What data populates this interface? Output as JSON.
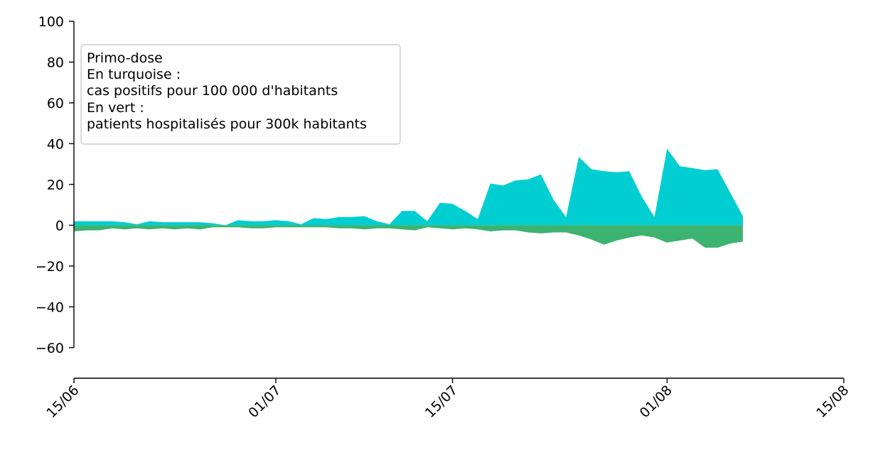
{
  "chart_data": {
    "type": "area",
    "title": "",
    "xlabel": "",
    "ylabel": "",
    "ylim": [
      -75,
      100
    ],
    "y_ticks": [
      100,
      80,
      60,
      40,
      20,
      0,
      -20,
      -40,
      -60
    ],
    "y_tick_labels": [
      "100",
      "80",
      "60",
      "40",
      "20",
      "0",
      "−20",
      "−40",
      "−60"
    ],
    "xlim": [
      "2021-06-15",
      "2021-08-15"
    ],
    "x_ticks": [
      "2021-06-15",
      "2021-07-01",
      "2021-07-15",
      "2021-08-01",
      "2021-08-15"
    ],
    "x_tick_labels": [
      "15/06",
      "01/07",
      "15/07",
      "01/08",
      "15/08"
    ],
    "grid": false,
    "legend_position": "top-left",
    "legend_lines": [
      "Primo-dose",
      "En turquoise :",
      "cas positifs pour 100 000 d'habitants",
      "En vert :",
      "patients hospitalisés pour 300k habitants"
    ],
    "colors": {
      "cases": "#00ced1",
      "hospital": "#3cb371"
    },
    "x": [
      "2021-06-15",
      "2021-06-16",
      "2021-06-17",
      "2021-06-18",
      "2021-06-19",
      "2021-06-20",
      "2021-06-21",
      "2021-06-22",
      "2021-06-23",
      "2021-06-24",
      "2021-06-25",
      "2021-06-26",
      "2021-06-27",
      "2021-06-28",
      "2021-06-29",
      "2021-06-30",
      "2021-07-01",
      "2021-07-02",
      "2021-07-03",
      "2021-07-04",
      "2021-07-05",
      "2021-07-06",
      "2021-07-07",
      "2021-07-08",
      "2021-07-09",
      "2021-07-10",
      "2021-07-11",
      "2021-07-12",
      "2021-07-13",
      "2021-07-14",
      "2021-07-15",
      "2021-07-16",
      "2021-07-17",
      "2021-07-18",
      "2021-07-19",
      "2021-07-20",
      "2021-07-21",
      "2021-07-22",
      "2021-07-23",
      "2021-07-24",
      "2021-07-25",
      "2021-07-26",
      "2021-07-27",
      "2021-07-28",
      "2021-07-29",
      "2021-07-30",
      "2021-07-31",
      "2021-08-01",
      "2021-08-02",
      "2021-08-03",
      "2021-08-04",
      "2021-08-05",
      "2021-08-06",
      "2021-08-07",
      "2021-08-08"
    ],
    "series": [
      {
        "key": "cases",
        "values": [
          2,
          2,
          2,
          2,
          1.5,
          0.5,
          2,
          1.5,
          1.5,
          1.5,
          1.5,
          1,
          0,
          2.5,
          2,
          2,
          2.5,
          2,
          0.5,
          3.5,
          3,
          4,
          4,
          4.5,
          2,
          0.5,
          7,
          7,
          2,
          11,
          10.5,
          7,
          3,
          20.5,
          19.5,
          22,
          22.5,
          25,
          12.5,
          4,
          33.5,
          27.5,
          26.5,
          26,
          26.5,
          14,
          4,
          37.5,
          29,
          28,
          27,
          27.5,
          16,
          4.5,
          null
        ]
      },
      {
        "key": "hospital",
        "values": [
          -3,
          -2.5,
          -2.5,
          -1.5,
          -2,
          -1.5,
          -2,
          -1.5,
          -2,
          -1.5,
          -2,
          -1,
          -1,
          -1,
          -1.5,
          -1.5,
          -1,
          -1,
          -1,
          -1,
          -1,
          -1.5,
          -1.5,
          -2,
          -1.5,
          -1.5,
          -2,
          -2.5,
          -1,
          -1.5,
          -2,
          -1.5,
          -2,
          -3,
          -2.5,
          -2.5,
          -3.5,
          -4,
          -3.5,
          -3.5,
          -5,
          -7,
          -9.5,
          -7.5,
          -6,
          -5,
          -6,
          -8.5,
          -7.5,
          -6.5,
          -11,
          -11,
          -9,
          -8,
          null
        ]
      }
    ]
  }
}
